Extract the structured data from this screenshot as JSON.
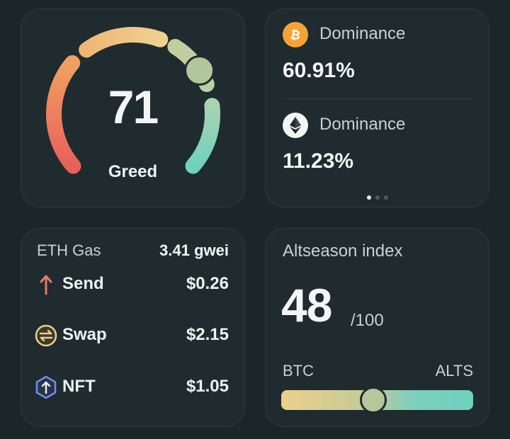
{
  "fear_greed": {
    "value": "71",
    "label": "Greed",
    "score": 71,
    "colors": {
      "fear": "#e8705a",
      "neutral": "#efce8a",
      "greed": "#72d2c0"
    }
  },
  "dominance": {
    "items": [
      {
        "icon": "bitcoin-icon",
        "label": "Dominance",
        "value": "60.91%",
        "color": "#f7a334"
      },
      {
        "icon": "ethereum-icon",
        "label": "Dominance",
        "value": "11.23%",
        "color": "#f4f6f6"
      }
    ],
    "page_dots": 3,
    "active_dot": 0
  },
  "gas": {
    "title": "ETH Gas",
    "total": "3.41 gwei",
    "rows": [
      {
        "icon": "arrow-up-icon",
        "label": "Send",
        "value": "$0.26"
      },
      {
        "icon": "swap-icon",
        "label": "Swap",
        "value": "$2.15"
      },
      {
        "icon": "nft-icon",
        "label": "NFT",
        "value": "$1.05"
      }
    ]
  },
  "altseason": {
    "title": "Altseason index",
    "value": "48",
    "max": "/100",
    "left_label": "BTC",
    "right_label": "ALTS",
    "level": 0.48
  }
}
